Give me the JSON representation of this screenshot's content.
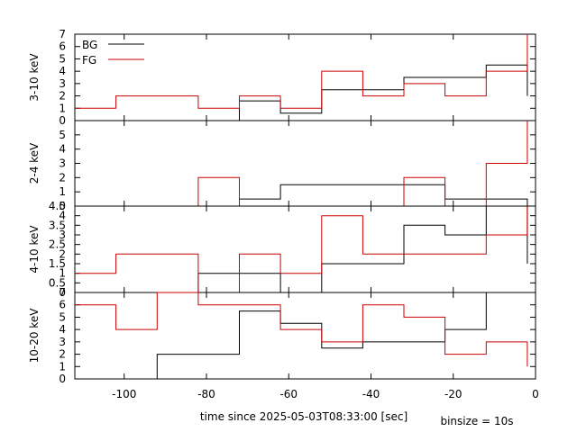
{
  "chart_data": {
    "type": "line",
    "step": true,
    "xlabel": "time since 2025-05-03T08:33:00 [sec]",
    "note": "binsize = 10s",
    "xlim": [
      -112,
      0
    ],
    "xticks": [
      -100,
      -80,
      -60,
      -40,
      -20,
      0
    ],
    "legend": {
      "position": "top-left",
      "entries": [
        "BG",
        "FG"
      ]
    },
    "colors": {
      "BG": "#000000",
      "FG": "#cc0000"
    },
    "panels": [
      {
        "ylabel": "3-10 keV",
        "ylim": [
          0,
          7
        ],
        "yticks": [
          "0",
          "1",
          "2",
          "3",
          "4",
          "5",
          "6",
          "7"
        ],
        "yticks_values": [
          0,
          1,
          2,
          3,
          4,
          5,
          6,
          7
        ],
        "series": [
          {
            "name": "BG",
            "x": [
              -112,
              -82,
              -82,
              -72,
              -72,
              -62,
              -62,
              -52,
              -52,
              -42,
              -42,
              -32,
              -32,
              -12,
              -12,
              -2,
              -2
            ],
            "y": [
              null,
              null,
              0,
              0,
              1.6,
              1.6,
              0.6,
              0.6,
              2.5,
              2.5,
              2.5,
              2.5,
              3.5,
              3.5,
              4.5,
              4.5,
              2
            ]
          },
          {
            "name": "FG",
            "x": [
              -112,
              -102,
              -102,
              -82,
              -82,
              -72,
              -72,
              -62,
              -62,
              -52,
              -52,
              -42,
              -42,
              -32,
              -32,
              -22,
              -22,
              -12,
              -12,
              -2,
              -2
            ],
            "y": [
              1,
              1,
              2,
              2,
              1,
              1,
              2,
              2,
              1,
              1,
              4,
              4,
              2,
              2,
              3,
              3,
              2,
              2,
              4,
              4,
              7
            ]
          }
        ]
      },
      {
        "ylabel": "2-4 keV",
        "ylim": [
          0,
          6
        ],
        "yticks": [
          "0",
          "1",
          "2",
          "3",
          "4",
          "5"
        ],
        "yticks_values": [
          0,
          1,
          2,
          3,
          4,
          5
        ],
        "series": [
          {
            "name": "BG",
            "x": [
              -72,
              -62,
              -62,
              -32,
              -32,
              -22,
              -22,
              -2,
              -2
            ],
            "y": [
              0.5,
              0.5,
              1.5,
              1.5,
              1.5,
              1.5,
              0.5,
              0.5,
              0
            ]
          },
          {
            "name": "FG",
            "x": [
              -82,
              -82,
              -72,
              -72,
              -32,
              -32,
              -22,
              -22,
              -12,
              -12,
              -2,
              -2
            ],
            "y": [
              0,
              2,
              2,
              0,
              0,
              2,
              2,
              0,
              0,
              3,
              3,
              6
            ]
          }
        ]
      },
      {
        "ylabel": "4-10 keV",
        "ylim": [
          0,
          4.5
        ],
        "yticks": [
          "0",
          "0.5",
          "1",
          "1.5",
          "2",
          "2.5",
          "3",
          "3.5",
          "4",
          "4.5"
        ],
        "yticks_values": [
          0,
          0.5,
          1,
          1.5,
          2,
          2.5,
          3,
          3.5,
          4,
          4.5
        ],
        "series": [
          {
            "name": "BG",
            "x": [
              -82,
              -82,
              -62,
              -62,
              -52,
              -52,
              -32,
              -32,
              -22,
              -22,
              -12,
              -12,
              -2,
              -2
            ],
            "y": [
              0,
              1,
              1,
              0,
              0,
              1.5,
              1.5,
              3.5,
              3.5,
              3,
              3,
              4.5,
              4.5,
              1.5
            ]
          },
          {
            "name": "FG",
            "x": [
              -112,
              -102,
              -102,
              -82,
              -82,
              -72,
              -72,
              -62,
              -62,
              -52,
              -52,
              -42,
              -42,
              -12,
              -12,
              -2,
              -2
            ],
            "y": [
              1,
              1,
              2,
              2,
              0,
              0,
              2,
              2,
              1,
              1,
              4,
              4,
              2,
              2,
              3,
              3,
              4.5
            ]
          }
        ]
      },
      {
        "ylabel": "10-20 keV",
        "ylim": [
          0,
          7
        ],
        "yticks": [
          "0",
          "1",
          "2",
          "3",
          "4",
          "5",
          "6",
          "7"
        ],
        "yticks_values": [
          0,
          1,
          2,
          3,
          4,
          5,
          6,
          7
        ],
        "series": [
          {
            "name": "BG",
            "x": [
              -92,
              -92,
              -72,
              -72,
              -62,
              -62,
              -52,
              -52,
              -42,
              -42,
              -22,
              -22,
              -12,
              -12
            ],
            "y": [
              0,
              2,
              2,
              5.5,
              5.5,
              4.5,
              4.5,
              2.5,
              2.5,
              3,
              3,
              4,
              4,
              7
            ]
          },
          {
            "name": "FG",
            "x": [
              -112,
              -102,
              -102,
              -92,
              -92,
              -82,
              -82,
              -62,
              -62,
              -52,
              -52,
              -42,
              -42,
              -32,
              -32,
              -22,
              -22,
              -12,
              -12,
              -2,
              -2
            ],
            "y": [
              6,
              6,
              4,
              4,
              7,
              7,
              6,
              6,
              4,
              4,
              3,
              3,
              6,
              6,
              5,
              5,
              2,
              2,
              3,
              3,
              1
            ]
          }
        ]
      }
    ]
  }
}
